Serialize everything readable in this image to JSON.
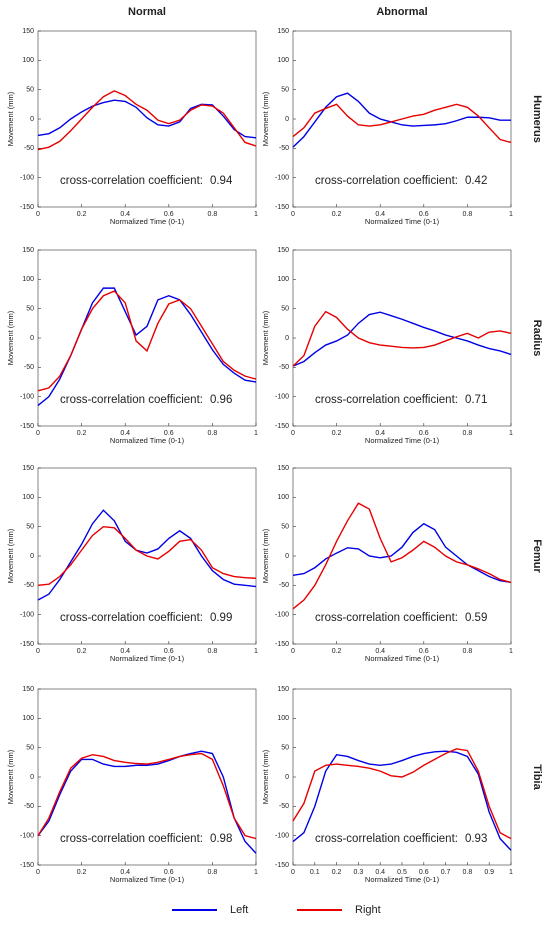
{
  "column_titles": [
    "Normal",
    "Abnormal"
  ],
  "row_titles": [
    "Humerus",
    "Radius",
    "Femur",
    "Tibia"
  ],
  "chart_data": [
    {
      "type": "line",
      "xlabel": "Normalized Time (0-1)",
      "ylabel": "Movement (mm)",
      "annotation": "cross-correlation coefficient:",
      "coefficient": 0.94,
      "xlim": [
        0,
        1
      ],
      "ylim": [
        -150,
        150
      ],
      "xticks": [
        0,
        0.2,
        0.4,
        0.6,
        0.8,
        1
      ],
      "yticks": [
        -150,
        -100,
        -50,
        0,
        50,
        100,
        150
      ],
      "x": [
        0,
        0.05,
        0.1,
        0.15,
        0.2,
        0.25,
        0.3,
        0.35,
        0.4,
        0.45,
        0.5,
        0.55,
        0.6,
        0.65,
        0.7,
        0.75,
        0.8,
        0.85,
        0.9,
        0.95,
        1
      ],
      "series": [
        {
          "name": "Left",
          "color": "#0000e6",
          "values": [
            -28,
            -25,
            -15,
            0,
            12,
            22,
            28,
            32,
            30,
            20,
            2,
            -10,
            -12,
            -5,
            18,
            25,
            24,
            5,
            -18,
            -30,
            -32
          ]
        },
        {
          "name": "Right",
          "color": "#e60000",
          "values": [
            -52,
            -48,
            -38,
            -20,
            0,
            20,
            38,
            48,
            40,
            25,
            15,
            -2,
            -8,
            -2,
            15,
            24,
            22,
            10,
            -15,
            -40,
            -46
          ]
        }
      ]
    },
    {
      "type": "line",
      "xlabel": "Normalized Time (0-1)",
      "ylabel": "Movement (mm)",
      "annotation": "cross-correlation coefficient:",
      "coefficient": 0.42,
      "xlim": [
        0,
        1
      ],
      "ylim": [
        -150,
        150
      ],
      "xticks": [
        0,
        0.2,
        0.4,
        0.6,
        0.8,
        1
      ],
      "yticks": [
        -150,
        -100,
        -50,
        0,
        50,
        100,
        150
      ],
      "x": [
        0,
        0.05,
        0.1,
        0.15,
        0.2,
        0.25,
        0.3,
        0.35,
        0.4,
        0.45,
        0.5,
        0.55,
        0.6,
        0.65,
        0.7,
        0.75,
        0.8,
        0.85,
        0.9,
        0.95,
        1
      ],
      "series": [
        {
          "name": "Left",
          "color": "#0000e6",
          "values": [
            -48,
            -30,
            -5,
            20,
            38,
            44,
            30,
            10,
            0,
            -5,
            -10,
            -12,
            -11,
            -10,
            -8,
            -3,
            3,
            3,
            2,
            -2,
            -2
          ]
        },
        {
          "name": "Right",
          "color": "#e60000",
          "values": [
            -30,
            -15,
            10,
            18,
            25,
            5,
            -10,
            -12,
            -10,
            -5,
            0,
            5,
            8,
            15,
            20,
            25,
            20,
            5,
            -15,
            -35,
            -40
          ]
        }
      ]
    },
    {
      "type": "line",
      "xlabel": "Normalized Time (0-1)",
      "ylabel": "Movement (mm)",
      "annotation": "cross-correlation coefficient:",
      "coefficient": 0.96,
      "xlim": [
        0,
        1
      ],
      "ylim": [
        -150,
        150
      ],
      "xticks": [
        0,
        0.2,
        0.4,
        0.6,
        0.8,
        1
      ],
      "yticks": [
        -150,
        -100,
        -50,
        0,
        50,
        100,
        150
      ],
      "x": [
        0,
        0.05,
        0.1,
        0.15,
        0.2,
        0.25,
        0.3,
        0.35,
        0.4,
        0.45,
        0.5,
        0.55,
        0.6,
        0.65,
        0.7,
        0.75,
        0.8,
        0.85,
        0.9,
        0.95,
        1
      ],
      "series": [
        {
          "name": "Left",
          "color": "#0000e6",
          "values": [
            -115,
            -100,
            -70,
            -30,
            15,
            60,
            85,
            85,
            45,
            5,
            20,
            65,
            72,
            65,
            40,
            10,
            -20,
            -45,
            -60,
            -72,
            -75
          ]
        },
        {
          "name": "Right",
          "color": "#e60000",
          "values": [
            -90,
            -85,
            -65,
            -30,
            15,
            50,
            72,
            80,
            60,
            -5,
            -22,
            25,
            58,
            65,
            50,
            20,
            -10,
            -40,
            -55,
            -65,
            -70
          ]
        }
      ]
    },
    {
      "type": "line",
      "xlabel": "Normalized Time (0-1)",
      "ylabel": "Movement (mm)",
      "annotation": "cross-correlation coefficient:",
      "coefficient": 0.71,
      "xlim": [
        0,
        1
      ],
      "ylim": [
        -150,
        150
      ],
      "xticks": [
        0,
        0.2,
        0.4,
        0.6,
        0.8,
        1
      ],
      "yticks": [
        -150,
        -100,
        -50,
        0,
        50,
        100,
        150
      ],
      "x": [
        0,
        0.05,
        0.1,
        0.15,
        0.2,
        0.25,
        0.3,
        0.35,
        0.4,
        0.45,
        0.5,
        0.55,
        0.6,
        0.65,
        0.7,
        0.75,
        0.8,
        0.85,
        0.9,
        0.95,
        1
      ],
      "series": [
        {
          "name": "Left",
          "color": "#0000e6",
          "values": [
            -48,
            -40,
            -25,
            -12,
            -5,
            5,
            25,
            40,
            44,
            38,
            32,
            25,
            18,
            12,
            5,
            0,
            -5,
            -12,
            -18,
            -22,
            -28
          ]
        },
        {
          "name": "Right",
          "color": "#e60000",
          "values": [
            -48,
            -30,
            20,
            45,
            35,
            15,
            0,
            -8,
            -12,
            -14,
            -16,
            -17,
            -16,
            -12,
            -5,
            2,
            8,
            0,
            10,
            12,
            8
          ]
        }
      ]
    },
    {
      "type": "line",
      "xlabel": "Normalized Time (0-1)",
      "ylabel": "Movement (mm)",
      "annotation": "cross-correlation coefficient:",
      "coefficient": 0.99,
      "xlim": [
        0,
        1
      ],
      "ylim": [
        -150,
        150
      ],
      "xticks": [
        0,
        0.2,
        0.4,
        0.6,
        0.8,
        1
      ],
      "yticks": [
        -150,
        -100,
        -50,
        0,
        50,
        100,
        150
      ],
      "x": [
        0,
        0.05,
        0.1,
        0.15,
        0.2,
        0.25,
        0.3,
        0.35,
        0.4,
        0.45,
        0.5,
        0.55,
        0.6,
        0.65,
        0.7,
        0.75,
        0.8,
        0.85,
        0.9,
        0.95,
        1
      ],
      "series": [
        {
          "name": "Left",
          "color": "#0000e6",
          "values": [
            -75,
            -65,
            -40,
            -10,
            20,
            55,
            78,
            60,
            25,
            10,
            5,
            12,
            30,
            43,
            30,
            0,
            -25,
            -40,
            -48,
            -50,
            -52
          ]
        },
        {
          "name": "Right",
          "color": "#e60000",
          "values": [
            -50,
            -48,
            -35,
            -15,
            10,
            35,
            50,
            48,
            30,
            10,
            0,
            -5,
            8,
            25,
            28,
            10,
            -20,
            -30,
            -35,
            -37,
            -38
          ]
        }
      ]
    },
    {
      "type": "line",
      "xlabel": "Normalized Time (0-1)",
      "ylabel": "Movement (mm)",
      "annotation": "cross-correlation coefficient:",
      "coefficient": 0.59,
      "xlim": [
        0,
        1
      ],
      "ylim": [
        -150,
        150
      ],
      "xticks": [
        0,
        0.2,
        0.4,
        0.6,
        0.8,
        1
      ],
      "yticks": [
        -150,
        -100,
        -50,
        0,
        50,
        100,
        150
      ],
      "x": [
        0,
        0.05,
        0.1,
        0.15,
        0.2,
        0.25,
        0.3,
        0.35,
        0.4,
        0.45,
        0.5,
        0.55,
        0.6,
        0.65,
        0.7,
        0.75,
        0.8,
        0.85,
        0.9,
        0.95,
        1
      ],
      "series": [
        {
          "name": "Left",
          "color": "#0000e6",
          "values": [
            -33,
            -30,
            -20,
            -5,
            5,
            14,
            12,
            0,
            -3,
            0,
            15,
            40,
            55,
            45,
            15,
            0,
            -15,
            -25,
            -35,
            -42,
            -45
          ]
        },
        {
          "name": "Right",
          "color": "#e60000",
          "values": [
            -90,
            -75,
            -50,
            -15,
            25,
            60,
            90,
            80,
            30,
            -10,
            -3,
            10,
            25,
            15,
            0,
            -10,
            -15,
            -22,
            -30,
            -40,
            -45
          ]
        }
      ]
    },
    {
      "type": "line",
      "xlabel": "Normalized Time (0-1)",
      "ylabel": "Movement (mm)",
      "annotation": "cross-correlation coefficient:",
      "coefficient": 0.98,
      "xlim": [
        0,
        1
      ],
      "ylim": [
        -150,
        150
      ],
      "xticks": [
        0,
        0.2,
        0.4,
        0.6,
        0.8,
        1
      ],
      "yticks": [
        -150,
        -100,
        -50,
        0,
        50,
        100,
        150
      ],
      "x": [
        0,
        0.05,
        0.1,
        0.15,
        0.2,
        0.25,
        0.3,
        0.35,
        0.4,
        0.45,
        0.5,
        0.55,
        0.6,
        0.65,
        0.7,
        0.75,
        0.8,
        0.85,
        0.9,
        0.95,
        1
      ],
      "series": [
        {
          "name": "Left",
          "color": "#0000e6",
          "values": [
            -100,
            -75,
            -30,
            10,
            30,
            30,
            22,
            18,
            18,
            20,
            20,
            22,
            28,
            35,
            40,
            44,
            40,
            0,
            -70,
            -110,
            -130
          ]
        },
        {
          "name": "Right",
          "color": "#e60000",
          "values": [
            -100,
            -70,
            -25,
            15,
            32,
            38,
            35,
            28,
            25,
            23,
            22,
            25,
            30,
            35,
            38,
            40,
            30,
            -15,
            -70,
            -100,
            -105
          ]
        }
      ]
    },
    {
      "type": "line",
      "xlabel": "Normalized Time (0-1)",
      "ylabel": "Movement (mm)",
      "annotation": "cross-correlation coefficient:",
      "coefficient": 0.93,
      "xlim": [
        0,
        1
      ],
      "ylim": [
        -150,
        150
      ],
      "xticks": [
        0,
        0.1,
        0.2,
        0.3,
        0.4,
        0.5,
        0.6,
        0.7,
        0.8,
        0.9,
        1
      ],
      "yticks": [
        -150,
        -100,
        -50,
        0,
        50,
        100,
        150
      ],
      "x": [
        0,
        0.05,
        0.1,
        0.15,
        0.2,
        0.25,
        0.3,
        0.35,
        0.4,
        0.45,
        0.5,
        0.55,
        0.6,
        0.65,
        0.7,
        0.75,
        0.8,
        0.85,
        0.9,
        0.95,
        1
      ],
      "series": [
        {
          "name": "Left",
          "color": "#0000e6",
          "values": [
            -110,
            -95,
            -50,
            10,
            38,
            35,
            28,
            22,
            20,
            22,
            28,
            35,
            40,
            43,
            44,
            42,
            35,
            5,
            -60,
            -105,
            -125
          ]
        },
        {
          "name": "Right",
          "color": "#e60000",
          "values": [
            -75,
            -45,
            10,
            20,
            22,
            20,
            18,
            15,
            10,
            2,
            0,
            8,
            20,
            30,
            40,
            48,
            45,
            10,
            -50,
            -95,
            -105
          ]
        }
      ]
    }
  ]
}
